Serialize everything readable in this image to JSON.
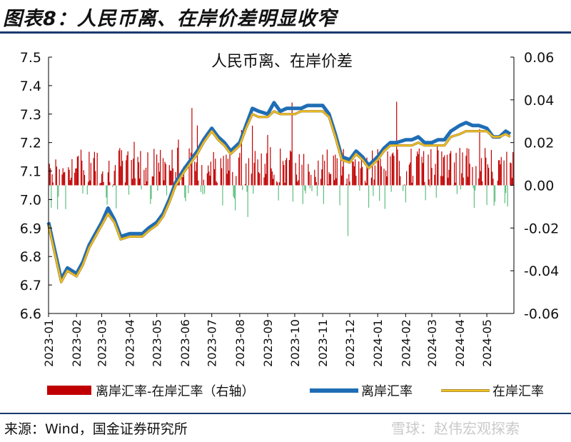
{
  "figure": {
    "title": "图表8：人民币离、在岸价差明显收窄",
    "source": "来源：Wind，国金证券研究所",
    "watermark": "雪球：赵伟宏观探索"
  },
  "colors": {
    "bar": "#c00000",
    "bar_negative": "#5fbf7f",
    "offshore": "#1f6db5",
    "onshore_fill": "#f4c020",
    "onshore_edge": "#a88f3a"
  },
  "chart_data": {
    "type": "line",
    "title": "人民币离、在岸价差",
    "x_ticks": [
      "2023-01",
      "2023-02",
      "2023-03",
      "2023-04",
      "2023-05",
      "2023-06",
      "2023-07",
      "2023-08",
      "2023-09",
      "2023-10",
      "2023-11",
      "2023-12",
      "2024-01",
      "2024-02",
      "2024-03",
      "2024-04",
      "2024-05"
    ],
    "y_left": {
      "lim": [
        6.6,
        7.5
      ],
      "ticks": [
        "6.6",
        "6.7",
        "6.8",
        "6.9",
        "7.0",
        "7.1",
        "7.2",
        "7.3",
        "7.4",
        "7.5"
      ]
    },
    "y_right": {
      "lim": [
        -0.06,
        0.06
      ],
      "ticks": [
        "-0.06",
        "-0.04",
        "-0.02",
        "0.00",
        "0.02",
        "0.04",
        "0.06"
      ]
    },
    "legend_position": "bottom",
    "series": [
      {
        "name": "离岸汇率-在岸汇率（右轴）",
        "type": "bar",
        "axis": "right"
      },
      {
        "name": "离岸汇率",
        "type": "line",
        "axis": "left",
        "points": [
          [
            "2023-01-01",
            6.92
          ],
          [
            "2023-01-08",
            6.82
          ],
          [
            "2023-01-15",
            6.72
          ],
          [
            "2023-01-22",
            6.76
          ],
          [
            "2023-02-01",
            6.74
          ],
          [
            "2023-02-08",
            6.78
          ],
          [
            "2023-02-15",
            6.84
          ],
          [
            "2023-02-22",
            6.88
          ],
          [
            "2023-03-01",
            6.92
          ],
          [
            "2023-03-08",
            6.97
          ],
          [
            "2023-03-15",
            6.93
          ],
          [
            "2023-03-22",
            6.87
          ],
          [
            "2023-04-01",
            6.88
          ],
          [
            "2023-04-08",
            6.88
          ],
          [
            "2023-04-15",
            6.88
          ],
          [
            "2023-04-22",
            6.9
          ],
          [
            "2023-05-01",
            6.92
          ],
          [
            "2023-05-08",
            6.95
          ],
          [
            "2023-05-15",
            7.0
          ],
          [
            "2023-05-22",
            7.06
          ],
          [
            "2023-06-01",
            7.11
          ],
          [
            "2023-06-08",
            7.14
          ],
          [
            "2023-06-15",
            7.17
          ],
          [
            "2023-06-22",
            7.21
          ],
          [
            "2023-07-01",
            7.25
          ],
          [
            "2023-07-08",
            7.22
          ],
          [
            "2023-07-15",
            7.2
          ],
          [
            "2023-07-22",
            7.17
          ],
          [
            "2023-08-01",
            7.2
          ],
          [
            "2023-08-08",
            7.26
          ],
          [
            "2023-08-15",
            7.32
          ],
          [
            "2023-08-22",
            7.31
          ],
          [
            "2023-09-01",
            7.3
          ],
          [
            "2023-09-08",
            7.34
          ],
          [
            "2023-09-15",
            7.31
          ],
          [
            "2023-09-22",
            7.32
          ],
          [
            "2023-10-01",
            7.32
          ],
          [
            "2023-10-08",
            7.32
          ],
          [
            "2023-10-15",
            7.33
          ],
          [
            "2023-10-22",
            7.33
          ],
          [
            "2023-11-01",
            7.33
          ],
          [
            "2023-11-08",
            7.3
          ],
          [
            "2023-11-15",
            7.23
          ],
          [
            "2023-11-22",
            7.15
          ],
          [
            "2023-12-01",
            7.14
          ],
          [
            "2023-12-08",
            7.17
          ],
          [
            "2023-12-15",
            7.15
          ],
          [
            "2023-12-22",
            7.12
          ],
          [
            "2024-01-01",
            7.15
          ],
          [
            "2024-01-08",
            7.18
          ],
          [
            "2024-01-15",
            7.2
          ],
          [
            "2024-01-22",
            7.2
          ],
          [
            "2024-02-01",
            7.21
          ],
          [
            "2024-02-08",
            7.21
          ],
          [
            "2024-02-15",
            7.22
          ],
          [
            "2024-02-22",
            7.2
          ],
          [
            "2024-03-01",
            7.2
          ],
          [
            "2024-03-08",
            7.21
          ],
          [
            "2024-03-15",
            7.21
          ],
          [
            "2024-03-22",
            7.24
          ],
          [
            "2024-04-01",
            7.26
          ],
          [
            "2024-04-08",
            7.27
          ],
          [
            "2024-04-15",
            7.26
          ],
          [
            "2024-04-22",
            7.26
          ],
          [
            "2024-05-01",
            7.25
          ],
          [
            "2024-05-08",
            7.22
          ],
          [
            "2024-05-15",
            7.22
          ],
          [
            "2024-05-22",
            7.24
          ],
          [
            "2024-05-27",
            7.23
          ]
        ]
      },
      {
        "name": "在岸汇率",
        "type": "line",
        "axis": "left",
        "points": [
          [
            "2023-01-01",
            6.91
          ],
          [
            "2023-01-08",
            6.81
          ],
          [
            "2023-01-15",
            6.71
          ],
          [
            "2023-01-22",
            6.75
          ],
          [
            "2023-02-01",
            6.73
          ],
          [
            "2023-02-08",
            6.77
          ],
          [
            "2023-02-15",
            6.83
          ],
          [
            "2023-02-22",
            6.87
          ],
          [
            "2023-03-01",
            6.91
          ],
          [
            "2023-03-08",
            6.95
          ],
          [
            "2023-03-15",
            6.92
          ],
          [
            "2023-03-22",
            6.86
          ],
          [
            "2023-04-01",
            6.87
          ],
          [
            "2023-04-08",
            6.87
          ],
          [
            "2023-04-15",
            6.87
          ],
          [
            "2023-04-22",
            6.89
          ],
          [
            "2023-05-01",
            6.91
          ],
          [
            "2023-05-08",
            6.94
          ],
          [
            "2023-05-15",
            6.99
          ],
          [
            "2023-05-22",
            7.05
          ],
          [
            "2023-06-01",
            7.1
          ],
          [
            "2023-06-08",
            7.13
          ],
          [
            "2023-06-15",
            7.16
          ],
          [
            "2023-06-22",
            7.2
          ],
          [
            "2023-07-01",
            7.24
          ],
          [
            "2023-07-08",
            7.21
          ],
          [
            "2023-07-15",
            7.19
          ],
          [
            "2023-07-22",
            7.16
          ],
          [
            "2023-08-01",
            7.19
          ],
          [
            "2023-08-08",
            7.25
          ],
          [
            "2023-08-15",
            7.3
          ],
          [
            "2023-08-22",
            7.29
          ],
          [
            "2023-09-01",
            7.29
          ],
          [
            "2023-09-08",
            7.31
          ],
          [
            "2023-09-15",
            7.3
          ],
          [
            "2023-09-22",
            7.3
          ],
          [
            "2023-10-01",
            7.3
          ],
          [
            "2023-10-08",
            7.31
          ],
          [
            "2023-10-15",
            7.31
          ],
          [
            "2023-10-22",
            7.31
          ],
          [
            "2023-11-01",
            7.31
          ],
          [
            "2023-11-08",
            7.29
          ],
          [
            "2023-11-15",
            7.22
          ],
          [
            "2023-11-22",
            7.14
          ],
          [
            "2023-12-01",
            7.13
          ],
          [
            "2023-12-08",
            7.16
          ],
          [
            "2023-12-15",
            7.14
          ],
          [
            "2023-12-22",
            7.11
          ],
          [
            "2024-01-01",
            7.14
          ],
          [
            "2024-01-08",
            7.17
          ],
          [
            "2024-01-15",
            7.19
          ],
          [
            "2024-01-22",
            7.19
          ],
          [
            "2024-02-01",
            7.19
          ],
          [
            "2024-02-08",
            7.19
          ],
          [
            "2024-02-15",
            7.2
          ],
          [
            "2024-02-22",
            7.19
          ],
          [
            "2024-03-01",
            7.19
          ],
          [
            "2024-03-08",
            7.19
          ],
          [
            "2024-03-15",
            7.19
          ],
          [
            "2024-03-22",
            7.22
          ],
          [
            "2024-04-01",
            7.23
          ],
          [
            "2024-04-08",
            7.24
          ],
          [
            "2024-04-15",
            7.24
          ],
          [
            "2024-04-22",
            7.24
          ],
          [
            "2024-05-01",
            7.24
          ],
          [
            "2024-05-08",
            7.22
          ],
          [
            "2024-05-15",
            7.22
          ],
          [
            "2024-05-22",
            7.23
          ],
          [
            "2024-05-27",
            7.22
          ]
        ]
      }
    ]
  }
}
